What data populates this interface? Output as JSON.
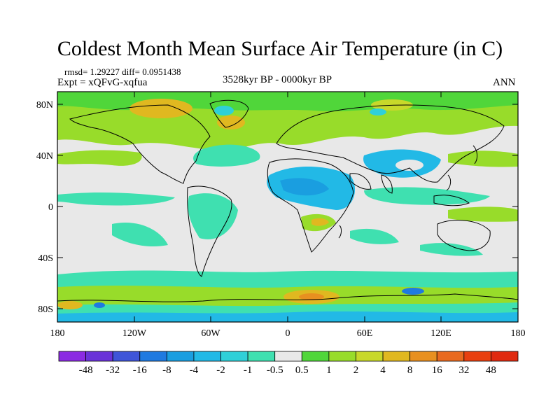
{
  "title": "Coldest Month Mean Surface Air Temperature (in C)",
  "stats": "rmsd= 1.29227  diff= 0.0951438",
  "experiment": "Expt = xQFvG-xqfua",
  "period": "3528kyr BP - 0000kyr BP",
  "season": "ANN",
  "lat_ticks": [
    "80N",
    "40N",
    "0",
    "40S",
    "80S"
  ],
  "lon_ticks": [
    "180",
    "120W",
    "60W",
    "0",
    "60E",
    "120E",
    "180"
  ],
  "colorbar": {
    "labels": [
      "-48",
      "-32",
      "-16",
      "-8",
      "-4",
      "-2",
      "-1",
      "-0.5",
      "0.5",
      "1",
      "2",
      "4",
      "8",
      "16",
      "32",
      "48"
    ],
    "colors": [
      "#8b2be2",
      "#6a33d8",
      "#3f55d8",
      "#1f7ae0",
      "#1a9ee0",
      "#22b9e6",
      "#2fd0d8",
      "#3fe0b0",
      "#e8e8e8",
      "#50d63a",
      "#98dc2a",
      "#c8d82a",
      "#e0b820",
      "#e89020",
      "#e86a20",
      "#e84010",
      "#e02a10"
    ]
  }
}
